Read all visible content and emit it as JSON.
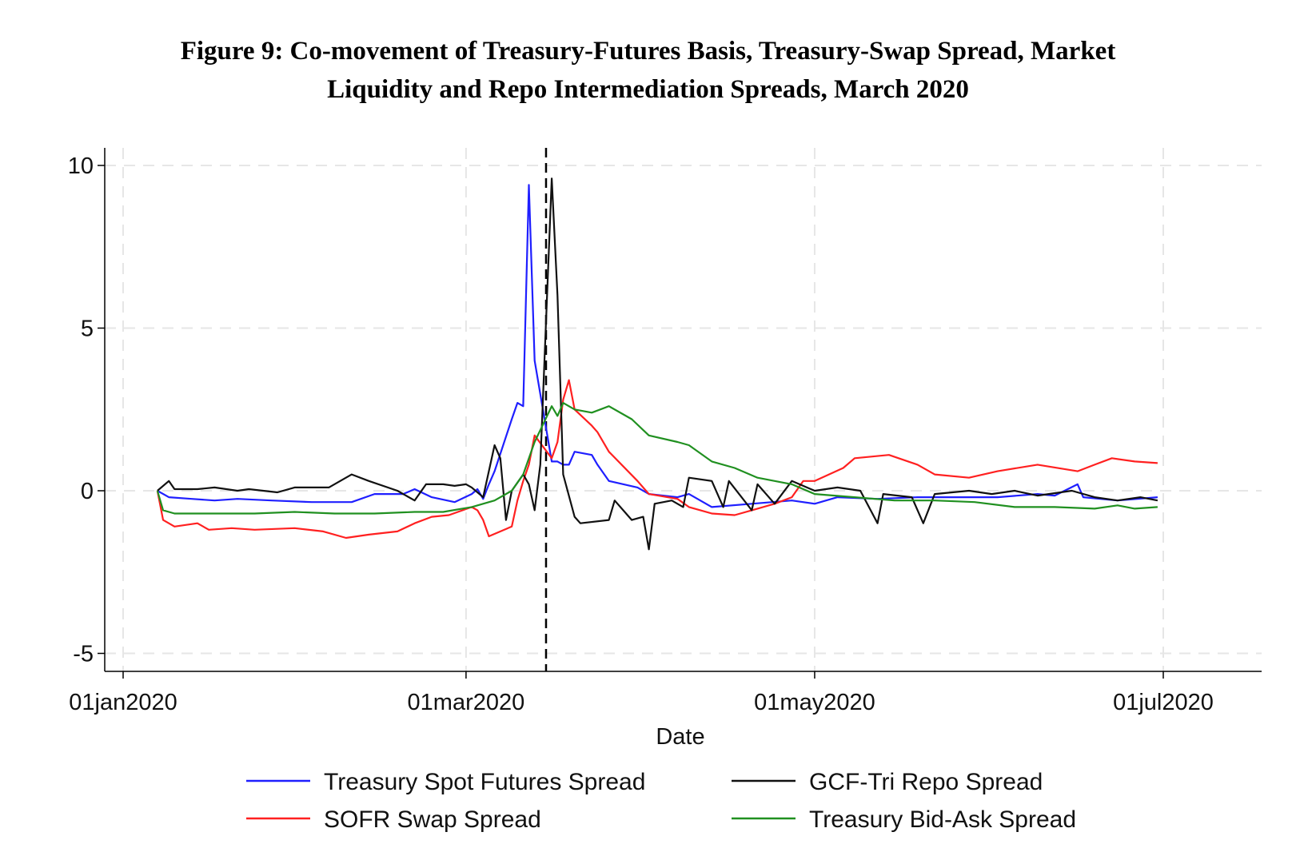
{
  "figure": {
    "title_line1": "Figure 9: Co-movement of Treasury-Futures Basis, Treasury-Swap Spread, Market",
    "title_line2": "Liquidity and Repo Intermediation Spreads, March 2020"
  },
  "chart_data": {
    "type": "line",
    "title": "Figure 9: Co-movement of Treasury-Futures Basis, Treasury-Swap Spread, Market Liquidity and Repo Intermediation Spreads, March 2020",
    "xlabel": "Date",
    "ylabel": "",
    "xlim": [
      "2020-01-01",
      "2020-07-18"
    ],
    "ylim": [
      -5.5,
      10.5
    ],
    "x_ticks": [
      {
        "date": "2020-01-01",
        "label": "01jan2020"
      },
      {
        "date": "2020-03-01",
        "label": "01mar2020"
      },
      {
        "date": "2020-05-01",
        "label": "01may2020"
      },
      {
        "date": "2020-07-01",
        "label": "01jul2020"
      }
    ],
    "y_ticks": [
      {
        "value": 10,
        "label": "10"
      },
      {
        "value": 5,
        "label": "5"
      },
      {
        "value": 0,
        "label": "0"
      },
      {
        "value": -5,
        "label": "-5"
      }
    ],
    "grid": true,
    "vline": {
      "date": "2020-03-15",
      "style": "dashed",
      "color": "#000000"
    },
    "legend_position": "bottom",
    "series": [
      {
        "name": "Treasury Spot Futures Spread",
        "color": "#1f1fff",
        "points": [
          [
            "2020-01-07",
            0
          ],
          [
            "2020-01-09",
            -0.2
          ],
          [
            "2020-01-13",
            -0.25
          ],
          [
            "2020-01-17",
            -0.3
          ],
          [
            "2020-01-21",
            -0.25
          ],
          [
            "2020-01-27",
            -0.3
          ],
          [
            "2020-02-03",
            -0.35
          ],
          [
            "2020-02-10",
            -0.35
          ],
          [
            "2020-02-14",
            -0.1
          ],
          [
            "2020-02-19",
            -0.1
          ],
          [
            "2020-02-21",
            0.05
          ],
          [
            "2020-02-24",
            -0.2
          ],
          [
            "2020-02-28",
            -0.35
          ],
          [
            "2020-03-02",
            -0.1
          ],
          [
            "2020-03-03",
            0.05
          ],
          [
            "2020-03-04",
            -0.25
          ],
          [
            "2020-03-05",
            0.2
          ],
          [
            "2020-03-06",
            0.6
          ],
          [
            "2020-03-09",
            2.2
          ],
          [
            "2020-03-10",
            2.7
          ],
          [
            "2020-03-11",
            2.6
          ],
          [
            "2020-03-12",
            9.4
          ],
          [
            "2020-03-13",
            4.0
          ],
          [
            "2020-03-16",
            0.9
          ],
          [
            "2020-03-17",
            0.9
          ],
          [
            "2020-03-18",
            0.8
          ],
          [
            "2020-03-19",
            0.8
          ],
          [
            "2020-03-20",
            1.2
          ],
          [
            "2020-03-23",
            1.1
          ],
          [
            "2020-03-24",
            0.8
          ],
          [
            "2020-03-26",
            0.3
          ],
          [
            "2020-03-31",
            0.1
          ],
          [
            "2020-04-02",
            -0.1
          ],
          [
            "2020-04-07",
            -0.2
          ],
          [
            "2020-04-09",
            -0.1
          ],
          [
            "2020-04-13",
            -0.5
          ],
          [
            "2020-04-20",
            -0.4
          ],
          [
            "2020-04-27",
            -0.3
          ],
          [
            "2020-05-01",
            -0.4
          ],
          [
            "2020-05-05",
            -0.2
          ],
          [
            "2020-05-12",
            -0.25
          ],
          [
            "2020-05-19",
            -0.2
          ],
          [
            "2020-05-26",
            -0.2
          ],
          [
            "2020-06-02",
            -0.2
          ],
          [
            "2020-06-09",
            -0.1
          ],
          [
            "2020-06-12",
            -0.15
          ],
          [
            "2020-06-16",
            0.2
          ],
          [
            "2020-06-17",
            -0.2
          ],
          [
            "2020-06-23",
            -0.3
          ],
          [
            "2020-06-30",
            -0.2
          ]
        ]
      },
      {
        "name": "SOFR Swap Spread",
        "color": "#ff2020",
        "points": [
          [
            "2020-01-07",
            0
          ],
          [
            "2020-01-08",
            -0.9
          ],
          [
            "2020-01-10",
            -1.1
          ],
          [
            "2020-01-14",
            -1.0
          ],
          [
            "2020-01-16",
            -1.2
          ],
          [
            "2020-01-20",
            -1.15
          ],
          [
            "2020-01-24",
            -1.2
          ],
          [
            "2020-01-31",
            -1.15
          ],
          [
            "2020-02-05",
            -1.25
          ],
          [
            "2020-02-09",
            -1.45
          ],
          [
            "2020-02-13",
            -1.35
          ],
          [
            "2020-02-18",
            -1.25
          ],
          [
            "2020-02-21",
            -1.0
          ],
          [
            "2020-02-24",
            -0.8
          ],
          [
            "2020-02-27",
            -0.75
          ],
          [
            "2020-03-02",
            -0.5
          ],
          [
            "2020-03-03",
            -0.6
          ],
          [
            "2020-03-04",
            -0.9
          ],
          [
            "2020-03-05",
            -1.4
          ],
          [
            "2020-03-09",
            -1.1
          ],
          [
            "2020-03-10",
            -0.3
          ],
          [
            "2020-03-11",
            0.3
          ],
          [
            "2020-03-12",
            0.8
          ],
          [
            "2020-03-13",
            1.7
          ],
          [
            "2020-03-16",
            1.0
          ],
          [
            "2020-03-17",
            1.5
          ],
          [
            "2020-03-18",
            2.8
          ],
          [
            "2020-03-19",
            3.4
          ],
          [
            "2020-03-20",
            2.5
          ],
          [
            "2020-03-23",
            2.0
          ],
          [
            "2020-03-24",
            1.8
          ],
          [
            "2020-03-26",
            1.2
          ],
          [
            "2020-03-31",
            0.3
          ],
          [
            "2020-04-02",
            -0.1
          ],
          [
            "2020-04-07",
            -0.25
          ],
          [
            "2020-04-09",
            -0.5
          ],
          [
            "2020-04-13",
            -0.7
          ],
          [
            "2020-04-17",
            -0.75
          ],
          [
            "2020-04-21",
            -0.55
          ],
          [
            "2020-04-24",
            -0.4
          ],
          [
            "2020-04-27",
            -0.2
          ],
          [
            "2020-04-29",
            0.3
          ],
          [
            "2020-05-01",
            0.3
          ],
          [
            "2020-05-06",
            0.7
          ],
          [
            "2020-05-08",
            1.0
          ],
          [
            "2020-05-14",
            1.1
          ],
          [
            "2020-05-19",
            0.8
          ],
          [
            "2020-05-22",
            0.5
          ],
          [
            "2020-05-28",
            0.4
          ],
          [
            "2020-06-02",
            0.6
          ],
          [
            "2020-06-09",
            0.8
          ],
          [
            "2020-06-16",
            0.6
          ],
          [
            "2020-06-19",
            0.8
          ],
          [
            "2020-06-22",
            1.0
          ],
          [
            "2020-06-26",
            0.9
          ],
          [
            "2020-06-30",
            0.85
          ]
        ]
      },
      {
        "name": "GCF-Tri Repo Spread",
        "color": "#111111",
        "points": [
          [
            "2020-01-07",
            0
          ],
          [
            "2020-01-09",
            0.3
          ],
          [
            "2020-01-10",
            0.05
          ],
          [
            "2020-01-14",
            0.05
          ],
          [
            "2020-01-17",
            0.1
          ],
          [
            "2020-01-21",
            0.0
          ],
          [
            "2020-01-23",
            0.05
          ],
          [
            "2020-01-28",
            -0.05
          ],
          [
            "2020-01-31",
            0.1
          ],
          [
            "2020-02-06",
            0.1
          ],
          [
            "2020-02-10",
            0.5
          ],
          [
            "2020-02-13",
            0.3
          ],
          [
            "2020-02-18",
            0.0
          ],
          [
            "2020-02-21",
            -0.3
          ],
          [
            "2020-02-23",
            0.2
          ],
          [
            "2020-02-26",
            0.2
          ],
          [
            "2020-02-28",
            0.15
          ],
          [
            "2020-03-01",
            0.2
          ],
          [
            "2020-03-02",
            0.1
          ],
          [
            "2020-03-04",
            -0.2
          ],
          [
            "2020-03-06",
            1.4
          ],
          [
            "2020-03-07",
            1.0
          ],
          [
            "2020-03-08",
            -0.9
          ],
          [
            "2020-03-09",
            0.0
          ],
          [
            "2020-03-11",
            0.5
          ],
          [
            "2020-03-12",
            0.2
          ],
          [
            "2020-03-13",
            -0.6
          ],
          [
            "2020-03-14",
            0.8
          ],
          [
            "2020-03-16",
            9.6
          ],
          [
            "2020-03-17",
            6.0
          ],
          [
            "2020-03-18",
            0.5
          ],
          [
            "2020-03-20",
            -0.8
          ],
          [
            "2020-03-21",
            -1.0
          ],
          [
            "2020-03-26",
            -0.9
          ],
          [
            "2020-03-27",
            -0.3
          ],
          [
            "2020-03-30",
            -0.9
          ],
          [
            "2020-04-01",
            -0.8
          ],
          [
            "2020-04-02",
            -1.8
          ],
          [
            "2020-04-03",
            -0.4
          ],
          [
            "2020-04-06",
            -0.3
          ],
          [
            "2020-04-08",
            -0.5
          ],
          [
            "2020-04-09",
            0.4
          ],
          [
            "2020-04-13",
            0.3
          ],
          [
            "2020-04-15",
            -0.5
          ],
          [
            "2020-04-16",
            0.3
          ],
          [
            "2020-04-20",
            -0.6
          ],
          [
            "2020-04-21",
            0.2
          ],
          [
            "2020-04-24",
            -0.4
          ],
          [
            "2020-04-27",
            0.3
          ],
          [
            "2020-05-01",
            0.0
          ],
          [
            "2020-05-05",
            0.1
          ],
          [
            "2020-05-09",
            0.0
          ],
          [
            "2020-05-12",
            -1.0
          ],
          [
            "2020-05-13",
            -0.1
          ],
          [
            "2020-05-18",
            -0.2
          ],
          [
            "2020-05-20",
            -1.0
          ],
          [
            "2020-05-22",
            -0.1
          ],
          [
            "2020-05-28",
            0.0
          ],
          [
            "2020-06-01",
            -0.1
          ],
          [
            "2020-06-05",
            0.0
          ],
          [
            "2020-06-09",
            -0.15
          ],
          [
            "2020-06-15",
            0.0
          ],
          [
            "2020-06-19",
            -0.2
          ],
          [
            "2020-06-23",
            -0.3
          ],
          [
            "2020-06-27",
            -0.2
          ],
          [
            "2020-06-30",
            -0.3
          ]
        ]
      },
      {
        "name": "Treasury Bid-Ask Spread",
        "color": "#209020",
        "points": [
          [
            "2020-01-07",
            0
          ],
          [
            "2020-01-08",
            -0.6
          ],
          [
            "2020-01-10",
            -0.7
          ],
          [
            "2020-01-17",
            -0.7
          ],
          [
            "2020-01-24",
            -0.7
          ],
          [
            "2020-01-31",
            -0.65
          ],
          [
            "2020-02-07",
            -0.7
          ],
          [
            "2020-02-14",
            -0.7
          ],
          [
            "2020-02-21",
            -0.65
          ],
          [
            "2020-02-26",
            -0.65
          ],
          [
            "2020-03-02",
            -0.5
          ],
          [
            "2020-03-04",
            -0.4
          ],
          [
            "2020-03-06",
            -0.3
          ],
          [
            "2020-03-09",
            0.0
          ],
          [
            "2020-03-11",
            0.5
          ],
          [
            "2020-03-13",
            1.5
          ],
          [
            "2020-03-16",
            2.6
          ],
          [
            "2020-03-17",
            2.3
          ],
          [
            "2020-03-18",
            2.7
          ],
          [
            "2020-03-20",
            2.5
          ],
          [
            "2020-03-23",
            2.4
          ],
          [
            "2020-03-26",
            2.6
          ],
          [
            "2020-03-30",
            2.2
          ],
          [
            "2020-04-02",
            1.7
          ],
          [
            "2020-04-07",
            1.5
          ],
          [
            "2020-04-09",
            1.4
          ],
          [
            "2020-04-13",
            0.9
          ],
          [
            "2020-04-17",
            0.7
          ],
          [
            "2020-04-21",
            0.4
          ],
          [
            "2020-04-27",
            0.2
          ],
          [
            "2020-05-01",
            -0.1
          ],
          [
            "2020-05-08",
            -0.2
          ],
          [
            "2020-05-15",
            -0.3
          ],
          [
            "2020-05-22",
            -0.3
          ],
          [
            "2020-05-29",
            -0.35
          ],
          [
            "2020-06-05",
            -0.5
          ],
          [
            "2020-06-12",
            -0.5
          ],
          [
            "2020-06-19",
            -0.55
          ],
          [
            "2020-06-23",
            -0.45
          ],
          [
            "2020-06-26",
            -0.55
          ],
          [
            "2020-06-30",
            -0.5
          ]
        ]
      }
    ]
  }
}
